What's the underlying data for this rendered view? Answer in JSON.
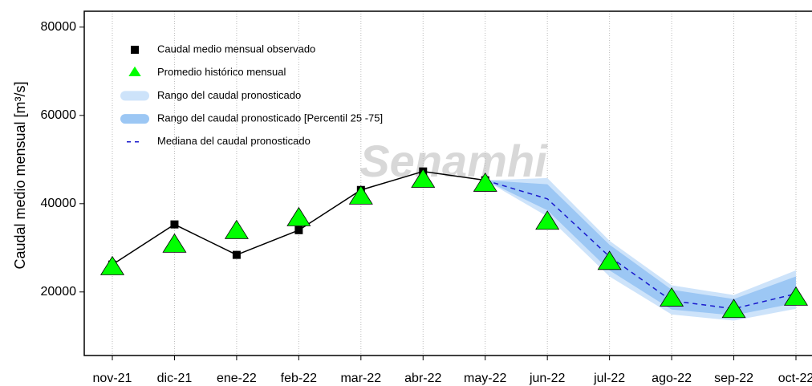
{
  "chart_data": {
    "type": "line",
    "ylabel": "Caudal medio mensual  [m³/s]",
    "watermark": "Senamhi",
    "categories": [
      "nov-21",
      "dic-21",
      "ene-22",
      "feb-22",
      "mar-22",
      "abr-22",
      "may-22",
      "jun-22",
      "jul-22",
      "ago-22",
      "sep-22",
      "oct-22"
    ],
    "ylim": [
      5600,
      83600
    ],
    "yticks": [
      20000,
      40000,
      60000,
      80000
    ],
    "grid": true,
    "legend": "upper left",
    "series": [
      {
        "name": "Caudal medio mensual observado",
        "kind": "square",
        "color": "#000000",
        "values": [
          26200,
          35300,
          28400,
          34000,
          43100,
          47300,
          45300,
          null,
          null,
          null,
          null,
          null
        ]
      },
      {
        "name": "Promedio histórico mensual",
        "kind": "triangle",
        "color": "#00ff00",
        "values": [
          25300,
          30400,
          33500,
          36400,
          41300,
          45100,
          44200,
          35600,
          26500,
          18200,
          15600,
          18400
        ]
      },
      {
        "name": "Rango del caudal pronosticado",
        "kind": "band",
        "color": "#cde3fa",
        "low": [
          null,
          null,
          null,
          null,
          null,
          null,
          45300,
          37100,
          23500,
          14900,
          13500,
          16200
        ],
        "high": [
          null,
          null,
          null,
          null,
          null,
          null,
          45300,
          45800,
          31600,
          21500,
          19300,
          24900
        ]
      },
      {
        "name": "Rango del caudal pronosticado [Percentil 25 -75]",
        "kind": "band",
        "color": "#9cc7f4",
        "low": [
          null,
          null,
          null,
          null,
          null,
          null,
          45300,
          38500,
          24900,
          16000,
          14700,
          17500
        ],
        "high": [
          null,
          null,
          null,
          null,
          null,
          null,
          45300,
          44400,
          30700,
          20500,
          18400,
          23500
        ]
      },
      {
        "name": "Mediana del caudal pronosticado",
        "kind": "dashed",
        "color": "#1a1acc",
        "values": [
          null,
          null,
          null,
          null,
          null,
          null,
          45300,
          41100,
          28000,
          18000,
          16200,
          19600
        ]
      }
    ]
  }
}
